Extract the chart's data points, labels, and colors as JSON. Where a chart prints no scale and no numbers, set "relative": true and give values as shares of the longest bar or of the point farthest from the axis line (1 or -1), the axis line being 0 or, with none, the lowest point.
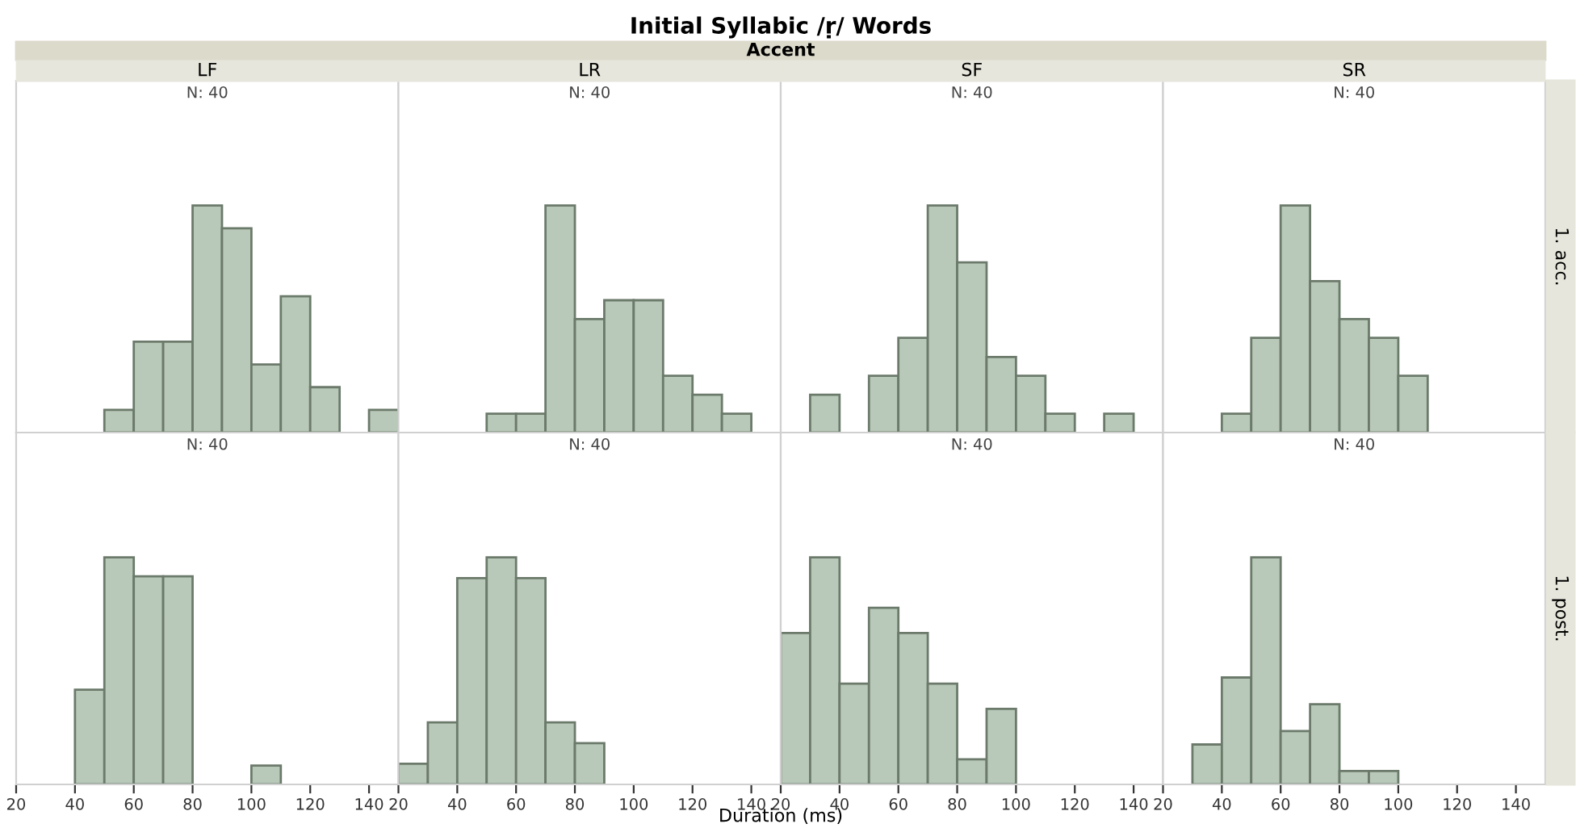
{
  "chart_data": [
    {
      "type": "bar",
      "title": "LF",
      "relative": true,
      "color": "#b9c9b9",
      "x": [
        55,
        65,
        75,
        85,
        95,
        105,
        115,
        125,
        145
      ],
      "values": [
        0.1,
        0.4,
        0.4,
        1,
        0.9,
        0.3,
        0.6,
        0.2,
        0.1
      ],
      "xlim": [
        20,
        150
      ],
      "xticks": [
        20,
        40,
        60,
        80,
        100,
        120,
        140
      ],
      "tick_labels": false,
      "annotations": [
        "N: 40",
        "Initial Syllabic /ṛ/ Words",
        "Accent",
        "Duration (ms)"
      ]
    },
    {
      "type": "bar",
      "title": "LR",
      "relative": true,
      "color": "#b9c9b9",
      "x": [
        55,
        65,
        75,
        85,
        95,
        105,
        115,
        125,
        135
      ],
      "values": [
        0.083,
        0.083,
        1,
        0.5,
        0.583,
        0.583,
        0.25,
        0.167,
        0.083
      ],
      "xlim": [
        20,
        150
      ],
      "xticks": [
        20,
        40,
        60,
        80,
        100,
        120,
        140
      ],
      "tick_labels": false,
      "annotations": [
        "N: 40"
      ]
    },
    {
      "type": "bar",
      "title": "SF",
      "relative": true,
      "color": "#b9c9b9",
      "x": [
        35,
        55,
        65,
        75,
        85,
        95,
        105,
        115,
        135
      ],
      "values": [
        0.167,
        0.25,
        0.417,
        1,
        0.75,
        0.333,
        0.25,
        0.083,
        0.083
      ],
      "xlim": [
        20,
        150
      ],
      "xticks": [
        20,
        40,
        60,
        80,
        100,
        120,
        140
      ],
      "tick_labels": false,
      "annotations": [
        "N: 40"
      ]
    },
    {
      "type": "bar",
      "title": "SR",
      "y2label": "1. acc.",
      "relative": true,
      "color": "#b9c9b9",
      "x": [
        45,
        55,
        65,
        75,
        85,
        95,
        105
      ],
      "values": [
        0.083,
        0.417,
        1,
        0.667,
        0.5,
        0.417,
        0.25
      ],
      "xlim": [
        20,
        150
      ],
      "xticks": [
        20,
        40,
        60,
        80,
        100,
        120,
        140
      ],
      "tick_labels": false,
      "annotations": [
        "N: 40"
      ]
    },
    {
      "type": "bar",
      "relative": true,
      "color": "#b9c9b9",
      "x": [
        45,
        55,
        65,
        75,
        105
      ],
      "values": [
        0.417,
        1,
        0.917,
        0.917,
        0.083
      ],
      "xlim": [
        20,
        150
      ],
      "xticks": [
        20,
        40,
        60,
        80,
        100,
        120,
        140
      ],
      "tick_labels": "x",
      "annotations": [
        "N: 40"
      ]
    },
    {
      "type": "bar",
      "relative": true,
      "color": "#b9c9b9",
      "x": [
        25,
        35,
        45,
        55,
        65,
        75,
        85
      ],
      "values": [
        0.091,
        0.273,
        0.909,
        1,
        0.909,
        0.273,
        0.182
      ],
      "xlim": [
        20,
        150
      ],
      "xticks": [
        20,
        40,
        60,
        80,
        100,
        120,
        140
      ],
      "tick_labels": "x",
      "annotations": [
        "N: 40"
      ]
    },
    {
      "type": "bar",
      "relative": true,
      "color": "#b9c9b9",
      "x": [
        25,
        35,
        45,
        55,
        65,
        75,
        85,
        95
      ],
      "values": [
        0.667,
        1,
        0.444,
        0.778,
        0.667,
        0.444,
        0.111,
        0.333
      ],
      "xlim": [
        20,
        150
      ],
      "xticks": [
        20,
        40,
        60,
        80,
        100,
        120,
        140
      ],
      "tick_labels": "x",
      "annotations": [
        "N: 40"
      ]
    },
    {
      "type": "bar",
      "y2label": "1. post.",
      "relative": true,
      "color": "#b9c9b9",
      "x": [
        35,
        45,
        55,
        65,
        75,
        85,
        95
      ],
      "values": [
        0.176,
        0.471,
        1,
        0.235,
        0.353,
        0.059,
        0.059
      ],
      "xlim": [
        20,
        150
      ],
      "xticks": [
        20,
        40,
        60,
        80,
        100,
        120,
        140
      ],
      "tick_labels": "x",
      "annotations": [
        "N: 40"
      ]
    }
  ]
}
